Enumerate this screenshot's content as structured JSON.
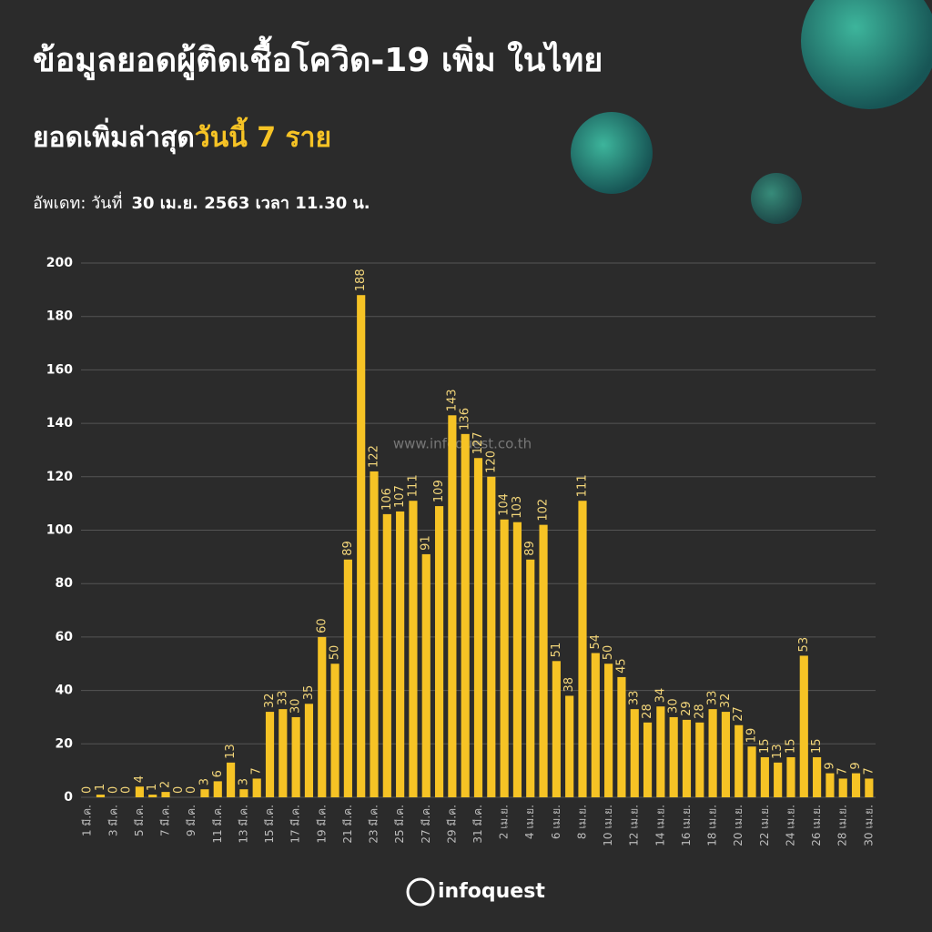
{
  "title": "ข้อมูลยอดผู้ติดเชื้อโควิด-19 เพิ่ม ในไทย",
  "subtitle": {
    "lead": "ยอดเพิ่มล่าสุด",
    "highlight": "วันนี้ 7 ราย"
  },
  "update": {
    "label": "อัพเดท: วันที่",
    "when": "30 เม.ย. 2563 เวลา 11.30 น."
  },
  "watermark": "www.infoquest.co.th",
  "logo": "infoquest",
  "chart_data": {
    "type": "bar",
    "categories": [
      "1 มี.ค.",
      null,
      "3 มี.ค.",
      null,
      "5 มี.ค.",
      null,
      "7 มี.ค.",
      null,
      "9 มี.ค.",
      null,
      "11 มี.ค.",
      null,
      "13 มี.ค.",
      null,
      "15 มี.ค.",
      null,
      "17 มี.ค.",
      null,
      "19 มี.ค.",
      null,
      "21 มี.ค.",
      null,
      "23 มี.ค.",
      null,
      "25 มี.ค.",
      null,
      "27 มี.ค.",
      null,
      "29 มี.ค.",
      null,
      "31 มี.ค.",
      null,
      "2 เม.ย.",
      null,
      "4 เม.ย.",
      null,
      "6 เม.ย.",
      null,
      "8 เม.ย.",
      null,
      "10 เม.ย.",
      null,
      "12 เม.ย.",
      null,
      "14 เม.ย.",
      null,
      "16 เม.ย.",
      null,
      "18 เม.ย.",
      null,
      "20 เม.ย.",
      null,
      "22 เม.ย.",
      null,
      "24 เม.ย.",
      null,
      "26 เม.ย.",
      null,
      "28 เม.ย.",
      null,
      "30 เม.ย."
    ],
    "values": [
      0,
      1,
      0,
      0,
      4,
      1,
      2,
      0,
      0,
      3,
      6,
      13,
      3,
      7,
      32,
      33,
      30,
      35,
      60,
      50,
      89,
      188,
      122,
      106,
      107,
      111,
      91,
      109,
      143,
      136,
      127,
      120,
      104,
      103,
      89,
      102,
      51,
      38,
      111,
      54,
      50,
      45,
      33,
      28,
      34,
      30,
      29,
      28,
      33,
      32,
      27,
      19,
      15,
      13,
      15,
      53,
      15,
      9,
      7,
      9,
      7
    ],
    "color": "#f6c325",
    "ylim": [
      0,
      200
    ],
    "yticks": [
      0,
      20,
      40,
      60,
      80,
      100,
      120,
      140,
      160,
      180,
      200
    ],
    "grid": true
  }
}
